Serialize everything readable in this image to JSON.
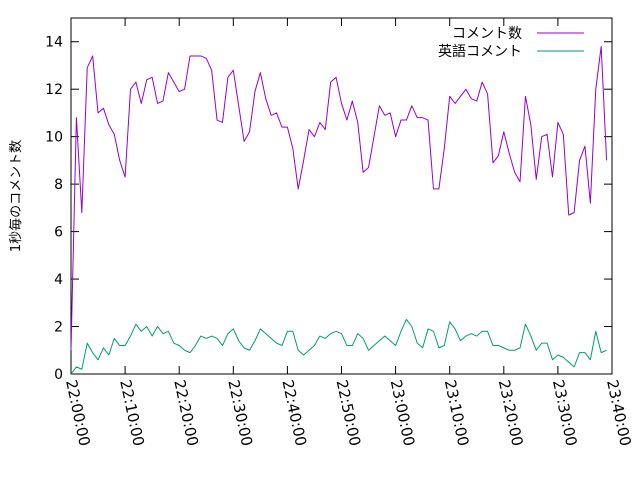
{
  "chart_data": {
    "type": "line",
    "title": "",
    "ylabel": "1秒毎のコメント数",
    "xlabel": "",
    "ylim": [
      0,
      15
    ],
    "yticks": [
      0,
      2,
      4,
      6,
      8,
      10,
      12,
      14
    ],
    "xlim": [
      "22:00:00",
      "23:40:00"
    ],
    "xticks": [
      "22:00:00",
      "22:10:00",
      "22:20:00",
      "22:30:00",
      "22:40:00",
      "22:50:00",
      "23:00:00",
      "23:10:00",
      "23:20:00",
      "23:30:00",
      "23:40:00"
    ],
    "x_sample_interval_sec": 60,
    "x_start": "22:00:00",
    "grid": false,
    "legend_position": "top-right",
    "series": [
      {
        "name": "コメント数",
        "color": "#9400d3",
        "values": [
          1.0,
          10.8,
          6.8,
          12.9,
          13.4,
          11.0,
          11.2,
          10.5,
          10.1,
          9.0,
          8.3,
          12.0,
          12.3,
          11.4,
          12.4,
          12.5,
          11.4,
          11.5,
          12.7,
          12.3,
          11.9,
          12.0,
          13.4,
          13.4,
          13.4,
          13.3,
          12.8,
          10.7,
          10.6,
          12.5,
          12.8,
          11.3,
          9.8,
          10.2,
          11.9,
          12.7,
          11.6,
          10.9,
          11.0,
          10.4,
          10.4,
          9.5,
          7.8,
          9.0,
          10.3,
          10.0,
          10.6,
          10.3,
          12.3,
          12.5,
          11.4,
          10.7,
          11.5,
          10.6,
          8.5,
          8.7,
          10.0,
          11.3,
          10.9,
          11.0,
          10.0,
          10.7,
          10.7,
          11.3,
          10.8,
          10.8,
          10.7,
          7.8,
          7.8,
          9.5,
          11.7,
          11.4,
          11.7,
          12.0,
          11.6,
          11.5,
          12.3,
          11.8,
          8.9,
          9.2,
          10.2,
          9.3,
          8.5,
          8.1,
          11.7,
          10.5,
          8.2,
          10.0,
          10.1,
          8.3,
          10.6,
          10.1,
          6.7,
          6.8,
          9.0,
          9.6,
          7.2,
          12.0,
          13.8,
          9.0
        ]
      },
      {
        "name": "英語コメント",
        "color": "#009e73",
        "values": [
          0.0,
          0.3,
          0.2,
          1.3,
          0.9,
          0.6,
          1.1,
          0.8,
          1.5,
          1.2,
          1.2,
          1.6,
          2.1,
          1.8,
          2.0,
          1.6,
          2.0,
          1.7,
          1.8,
          1.3,
          1.2,
          1.0,
          0.9,
          1.2,
          1.6,
          1.5,
          1.6,
          1.5,
          1.2,
          1.7,
          1.9,
          1.4,
          1.1,
          1.0,
          1.4,
          1.9,
          1.7,
          1.5,
          1.3,
          1.2,
          1.8,
          1.8,
          1.0,
          0.8,
          1.0,
          1.2,
          1.6,
          1.5,
          1.7,
          1.8,
          1.7,
          1.2,
          1.2,
          1.7,
          1.5,
          1.0,
          1.2,
          1.4,
          1.6,
          1.4,
          1.2,
          1.8,
          2.3,
          2.0,
          1.3,
          1.1,
          1.9,
          1.8,
          1.1,
          1.2,
          2.2,
          1.9,
          1.4,
          1.6,
          1.7,
          1.6,
          1.8,
          1.8,
          1.2,
          1.2,
          1.1,
          1.0,
          1.0,
          1.1,
          2.1,
          1.6,
          1.0,
          1.3,
          1.3,
          0.6,
          0.8,
          0.7,
          0.5,
          0.3,
          0.9,
          0.9,
          0.6,
          1.8,
          0.9,
          1.0
        ]
      }
    ]
  }
}
